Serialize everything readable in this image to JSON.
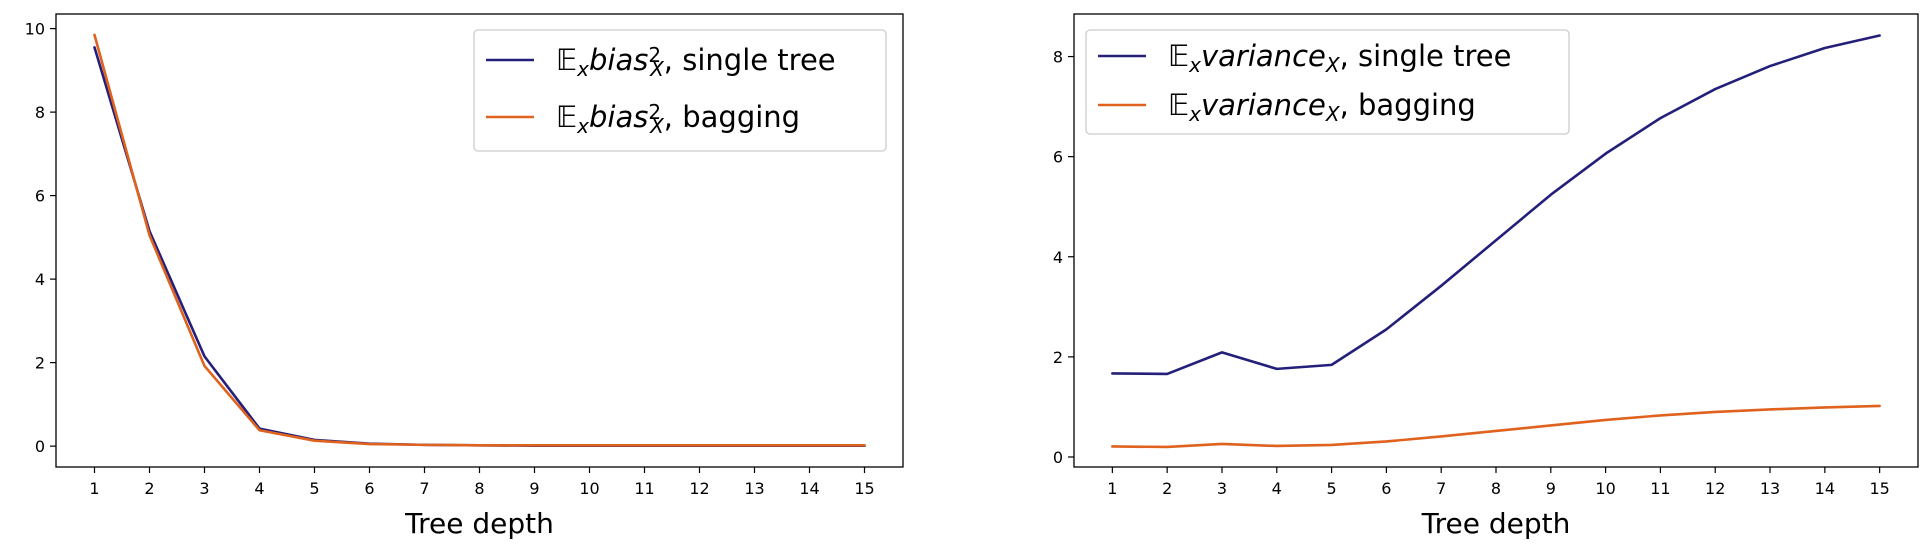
{
  "colors": {
    "single_tree": "#24207a",
    "bagging": "#e0621f"
  },
  "chart_data": [
    {
      "type": "line",
      "xlabel": "Tree depth",
      "ylabel": "",
      "title": "",
      "x": [
        1,
        2,
        3,
        4,
        5,
        6,
        7,
        8,
        9,
        10,
        11,
        12,
        13,
        14,
        15
      ],
      "xticks": [
        1,
        2,
        3,
        4,
        5,
        6,
        7,
        8,
        9,
        10,
        11,
        12,
        13,
        14,
        15
      ],
      "xlim": [
        0.3,
        15.7
      ],
      "ylim": [
        -0.5,
        10.35
      ],
      "yticks": [
        0,
        2,
        4,
        6,
        8,
        10
      ],
      "grid": false,
      "legend_position": "top-right",
      "series": [
        {
          "name": "single tree",
          "legend_prefix": "𝔼",
          "legend_sub1": "x",
          "legend_word": "bias",
          "legend_sup": "2",
          "legend_sub2": "X",
          "legend_suffix": ", single tree",
          "color_key": "single_tree",
          "values": [
            9.55,
            5.15,
            2.15,
            0.42,
            0.15,
            0.06,
            0.03,
            0.02,
            0.01,
            0.01,
            0.01,
            0.01,
            0.01,
            0.01,
            0.01
          ]
        },
        {
          "name": "bagging",
          "legend_prefix": "𝔼",
          "legend_sub1": "x",
          "legend_word": "bias",
          "legend_sup": "2",
          "legend_sub2": "X",
          "legend_suffix": ", bagging",
          "color_key": "bagging",
          "values": [
            9.85,
            5.05,
            1.92,
            0.38,
            0.13,
            0.05,
            0.03,
            0.02,
            0.02,
            0.02,
            0.02,
            0.02,
            0.02,
            0.02,
            0.02
          ]
        }
      ]
    },
    {
      "type": "line",
      "xlabel": "Tree depth",
      "ylabel": "",
      "title": "",
      "x": [
        1,
        2,
        3,
        4,
        5,
        6,
        7,
        8,
        9,
        10,
        11,
        12,
        13,
        14,
        15
      ],
      "xticks": [
        1,
        2,
        3,
        4,
        5,
        6,
        7,
        8,
        9,
        10,
        11,
        12,
        13,
        14,
        15
      ],
      "xlim": [
        0.3,
        15.7
      ],
      "ylim": [
        -0.2,
        8.85
      ],
      "yticks": [
        0,
        2,
        4,
        6,
        8
      ],
      "grid": false,
      "legend_position": "top-left",
      "series": [
        {
          "name": "single tree",
          "legend_prefix": "𝔼",
          "legend_sub1": "x",
          "legend_word": "variance",
          "legend_sup": "",
          "legend_sub2": "X",
          "legend_suffix": ", single tree",
          "color_key": "single_tree",
          "values": [
            1.67,
            1.66,
            2.09,
            1.76,
            1.84,
            2.55,
            3.42,
            4.33,
            5.24,
            6.06,
            6.77,
            7.35,
            7.81,
            8.17,
            8.42
          ]
        },
        {
          "name": "bagging",
          "legend_prefix": "𝔼",
          "legend_sub1": "x",
          "legend_word": "variance",
          "legend_sup": "",
          "legend_sub2": "X",
          "legend_suffix": ", bagging",
          "color_key": "bagging",
          "values": [
            0.21,
            0.2,
            0.26,
            0.22,
            0.24,
            0.31,
            0.41,
            0.52,
            0.63,
            0.74,
            0.83,
            0.9,
            0.95,
            0.99,
            1.02
          ]
        }
      ]
    }
  ]
}
